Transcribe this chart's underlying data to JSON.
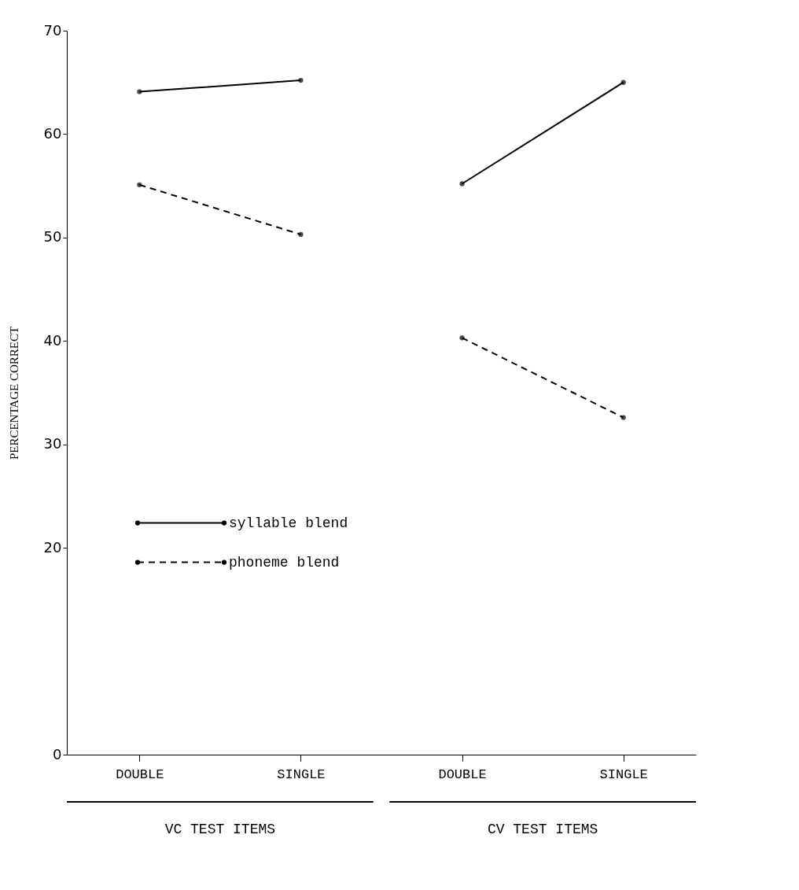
{
  "chart_data": {
    "type": "line",
    "categories": [
      "DOUBLE",
      "SINGLE",
      "DOUBLE",
      "SINGLE"
    ],
    "series": [
      {
        "name": "syllable blend",
        "color": "#000000",
        "line_style": "solid",
        "values": [
          64.1,
          65.2,
          55.2,
          65.0
        ]
      },
      {
        "name": "phoneme blend",
        "color": "#000000",
        "line_style": "dashed",
        "values": [
          55.1,
          50.3,
          40.3,
          32.6
        ]
      }
    ],
    "ylabel": "PERCENTAGE CORRECT",
    "ylim": [
      0,
      70
    ],
    "yticks": [
      0,
      20,
      30,
      40,
      50,
      60,
      70
    ],
    "annotations": [
      "VC TEST ITEMS",
      "CV TEST ITEMS"
    ],
    "marker": "circle",
    "grid": false,
    "legend": "bottom left"
  }
}
